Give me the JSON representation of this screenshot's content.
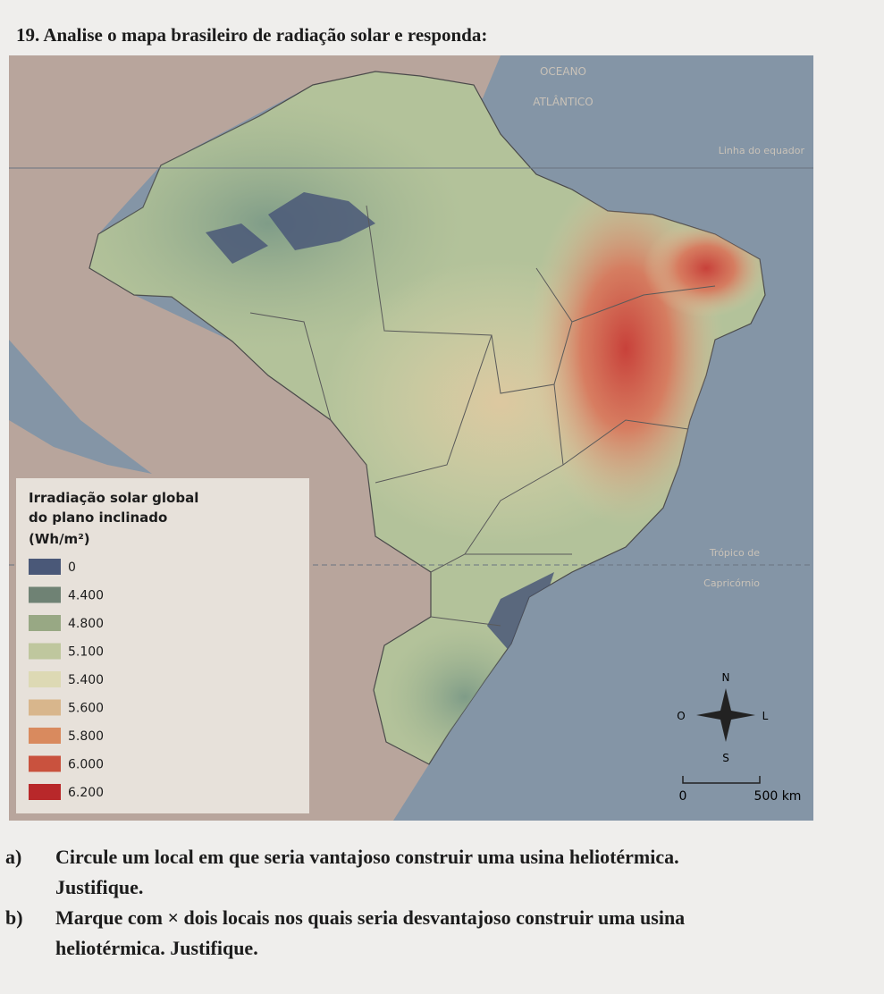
{
  "header": {
    "title": "19. Analise o mapa brasileiro de radiação solar e responda:"
  },
  "map": {
    "ocean_label": [
      "OCEANO",
      "ATLÂNTICO"
    ],
    "equator_label": "Linha do equador",
    "tropic_label": [
      "Trópico de",
      "Capricórnio"
    ],
    "legend": {
      "title": [
        "Irradiação solar global",
        "do plano inclinado",
        "(Wh/m²)"
      ],
      "items": [
        {
          "label": "0",
          "color": "#4a5878"
        },
        {
          "label": "4.400",
          "color": "#6f8274"
        },
        {
          "label": "4.800",
          "color": "#98a884"
        },
        {
          "label": "5.100",
          "color": "#bfc79e"
        },
        {
          "label": "5.400",
          "color": "#ddd9b4"
        },
        {
          "label": "5.600",
          "color": "#d8b68c"
        },
        {
          "label": "5.800",
          "color": "#d98a5e"
        },
        {
          "label": "6.000",
          "color": "#c9523e"
        },
        {
          "label": "6.200",
          "color": "#b8282a"
        }
      ]
    },
    "compass": {
      "north": "N",
      "south": "S",
      "west": "O",
      "east": "L"
    },
    "scale": {
      "start": "0",
      "end": "500 km"
    }
  },
  "questions": [
    {
      "label": "a)",
      "lines": [
        "Circule um local em que seria vantajoso construir uma usina heliotérmica.",
        "Justifique."
      ]
    },
    {
      "label": "b)",
      "lines": [
        "Marque com × dois locais nos quais seria desvantajoso construir uma usina",
        "heliotérmica. Justifique."
      ]
    }
  ]
}
